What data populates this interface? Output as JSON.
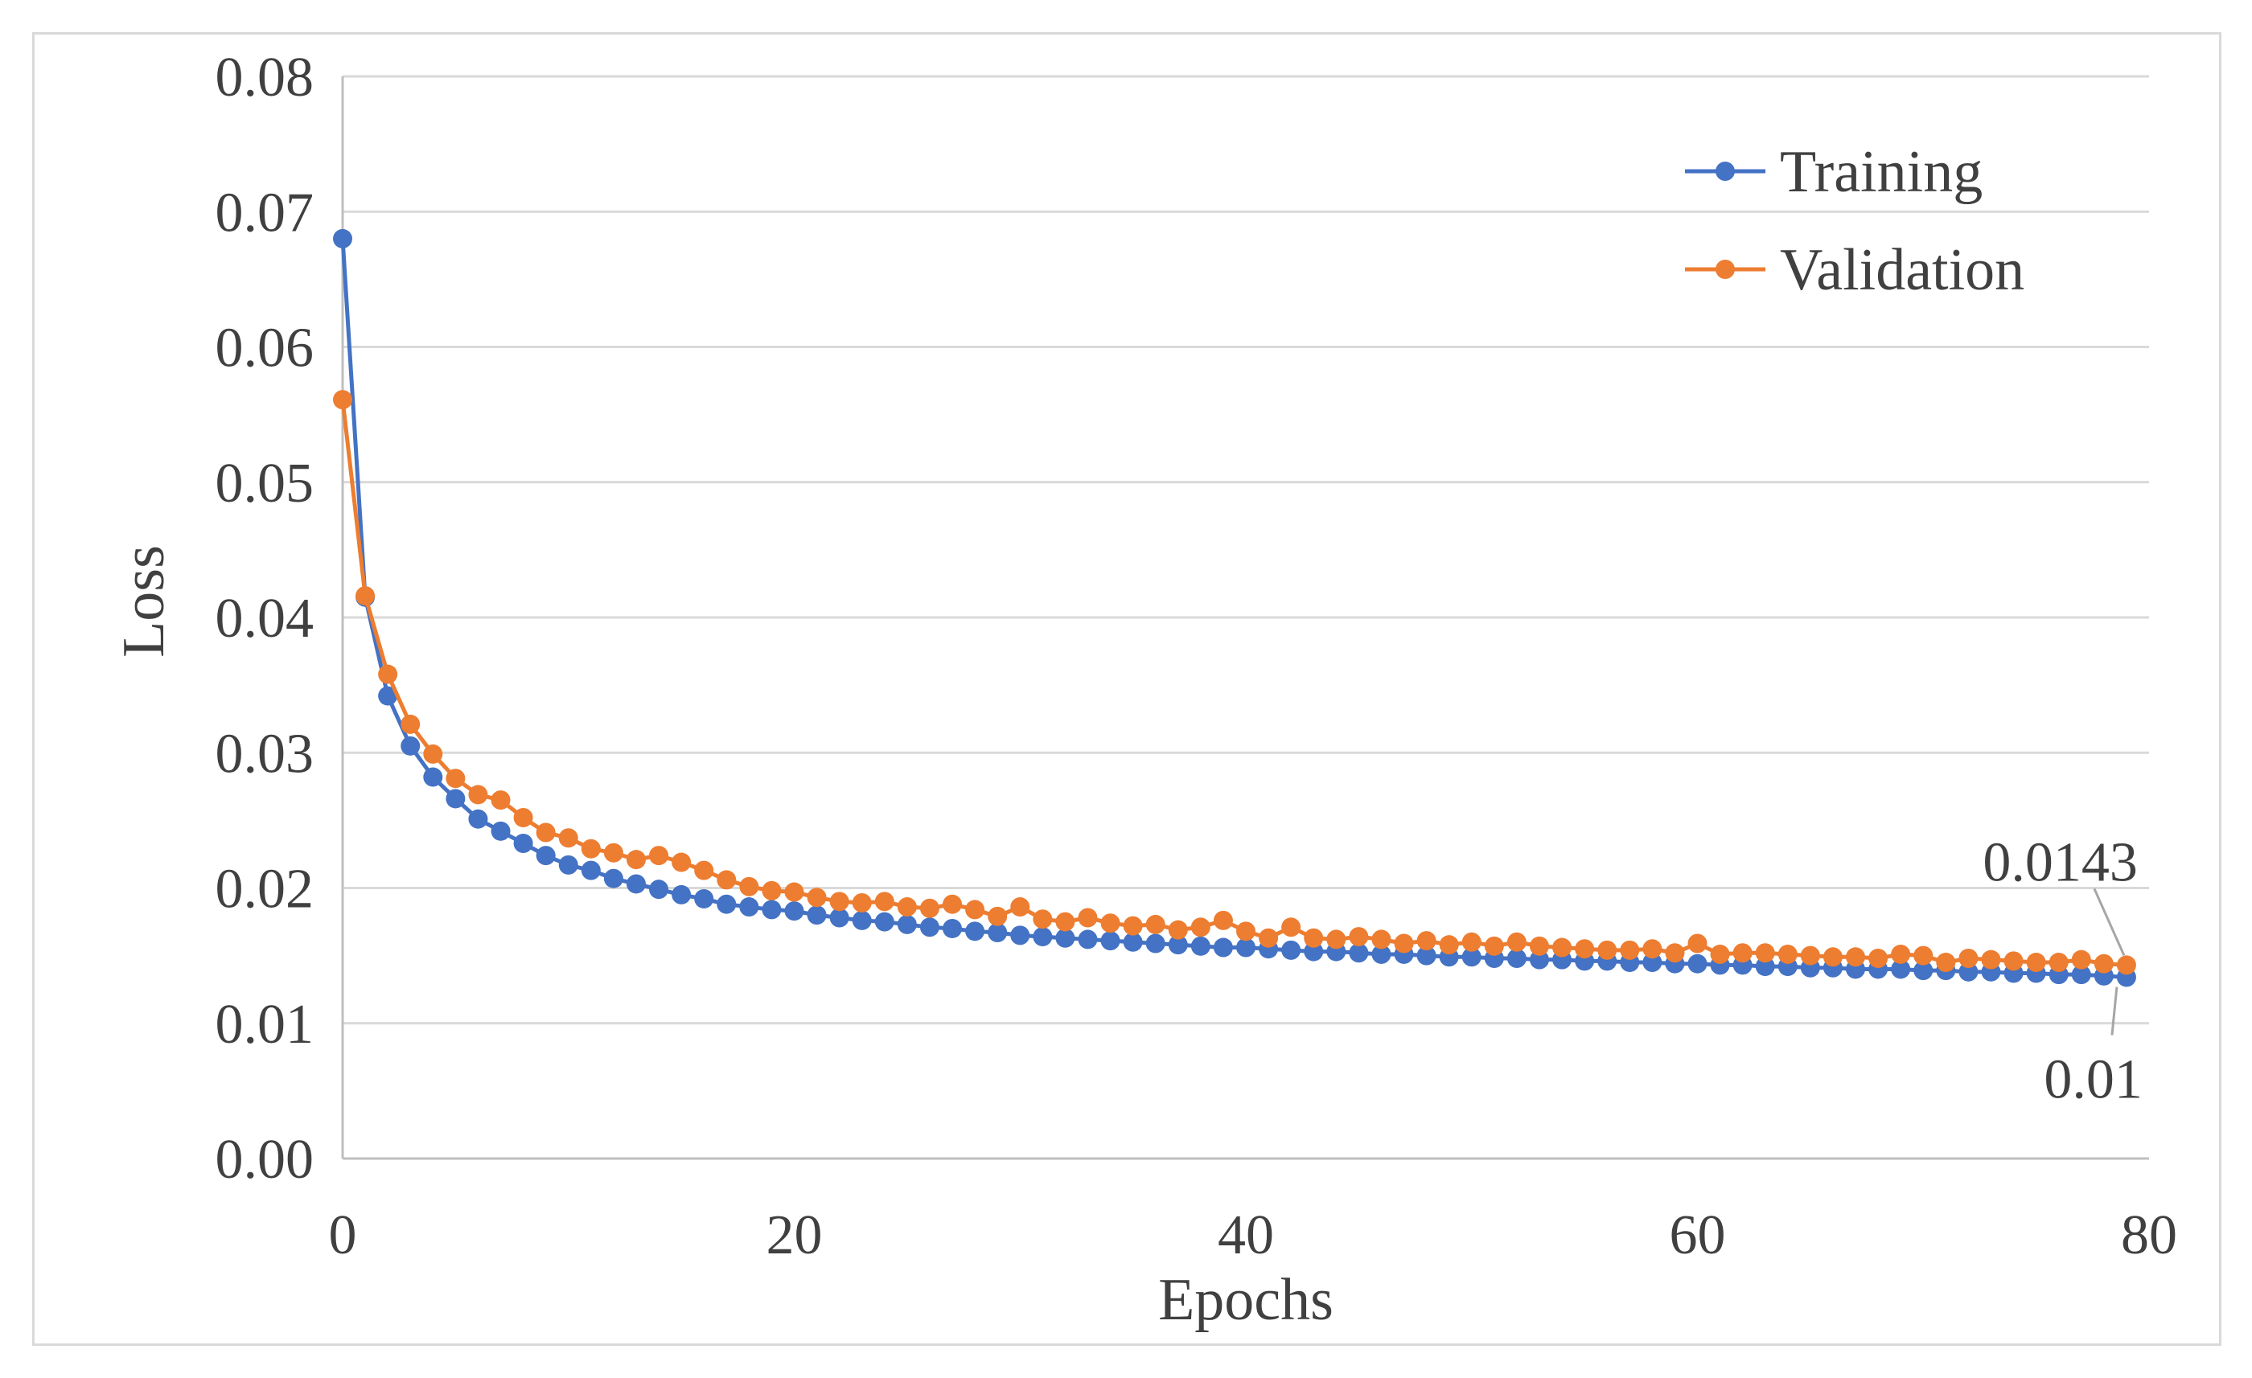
{
  "chart_data": {
    "type": "line",
    "title": "",
    "xlabel": "Epochs",
    "ylabel": "Loss",
    "xlim": [
      0,
      80
    ],
    "ylim": [
      0,
      0.08
    ],
    "xticks": [
      0,
      20,
      40,
      60,
      80
    ],
    "xtick_labels": [
      "0",
      "20",
      "40",
      "60",
      "80"
    ],
    "yticks": [
      0,
      0.01,
      0.02,
      0.03,
      0.04,
      0.05,
      0.06,
      0.07,
      0.08
    ],
    "ytick_labels": [
      "0.00",
      "0.01",
      "0.02",
      "0.03",
      "0.04",
      "0.05",
      "0.06",
      "0.07",
      "0.08"
    ],
    "grid": "horizontal",
    "legend_position": "top-right",
    "x": [
      0,
      1,
      2,
      3,
      4,
      5,
      6,
      7,
      8,
      9,
      10,
      11,
      12,
      13,
      14,
      15,
      16,
      17,
      18,
      19,
      20,
      21,
      22,
      23,
      24,
      25,
      26,
      27,
      28,
      29,
      30,
      31,
      32,
      33,
      34,
      35,
      36,
      37,
      38,
      39,
      40,
      41,
      42,
      43,
      44,
      45,
      46,
      47,
      48,
      49,
      50,
      51,
      52,
      53,
      54,
      55,
      56,
      57,
      58,
      59,
      60,
      61,
      62,
      63,
      64,
      65,
      66,
      67,
      68,
      69,
      70,
      71,
      72,
      73,
      74,
      75,
      76,
      77,
      78,
      79
    ],
    "series": [
      {
        "name": "Training",
        "color": "#4472c4",
        "values": [
          0.068,
          0.0415,
          0.0342,
          0.0305,
          0.0282,
          0.0266,
          0.0251,
          0.0242,
          0.0233,
          0.0224,
          0.0217,
          0.0213,
          0.0207,
          0.0203,
          0.0199,
          0.0195,
          0.0192,
          0.0188,
          0.0186,
          0.0184,
          0.0183,
          0.018,
          0.0178,
          0.0176,
          0.0175,
          0.0173,
          0.0171,
          0.017,
          0.0168,
          0.0167,
          0.0165,
          0.0164,
          0.0163,
          0.0162,
          0.0161,
          0.016,
          0.0159,
          0.0158,
          0.0157,
          0.0156,
          0.0156,
          0.0155,
          0.0154,
          0.0153,
          0.0153,
          0.0152,
          0.0151,
          0.0151,
          0.015,
          0.0149,
          0.0149,
          0.0148,
          0.0148,
          0.0147,
          0.0147,
          0.0146,
          0.0146,
          0.0145,
          0.0145,
          0.0144,
          0.0144,
          0.0143,
          0.0143,
          0.0142,
          0.0142,
          0.0141,
          0.0141,
          0.014,
          0.014,
          0.014,
          0.0139,
          0.0139,
          0.0138,
          0.0138,
          0.0137,
          0.0137,
          0.0136,
          0.0136,
          0.0135,
          0.0134
        ]
      },
      {
        "name": "Validation",
        "color": "#ed7d31",
        "values": [
          0.0561,
          0.0416,
          0.0358,
          0.0321,
          0.0299,
          0.0281,
          0.0269,
          0.0265,
          0.0252,
          0.0241,
          0.0237,
          0.0229,
          0.0226,
          0.0221,
          0.0224,
          0.0219,
          0.0213,
          0.0206,
          0.0201,
          0.0198,
          0.0197,
          0.0193,
          0.019,
          0.0189,
          0.019,
          0.0186,
          0.0185,
          0.0188,
          0.0184,
          0.0179,
          0.0186,
          0.0177,
          0.0175,
          0.0178,
          0.0174,
          0.0172,
          0.0173,
          0.0169,
          0.0171,
          0.0176,
          0.0168,
          0.0163,
          0.0171,
          0.0163,
          0.0162,
          0.0164,
          0.0162,
          0.0159,
          0.0161,
          0.0158,
          0.016,
          0.0157,
          0.016,
          0.0157,
          0.0156,
          0.0155,
          0.0154,
          0.0154,
          0.0155,
          0.0152,
          0.0159,
          0.0151,
          0.0152,
          0.0152,
          0.0151,
          0.015,
          0.0149,
          0.0149,
          0.0148,
          0.0151,
          0.015,
          0.0145,
          0.0148,
          0.0147,
          0.0146,
          0.0145,
          0.0145,
          0.0147,
          0.0144,
          0.0143
        ]
      }
    ],
    "annotations": [
      {
        "text": "0.0143",
        "series": "Validation",
        "x": 79,
        "y": 0.0143
      },
      {
        "text": "0.01",
        "series": "Training",
        "x": 79,
        "y": 0.0134
      }
    ],
    "colors": {
      "grid": "#d9d9d9",
      "axis": "#bfbfbf",
      "text": "#404040",
      "frame": "#d9d9d9",
      "leader": "#a6a6a6"
    }
  }
}
